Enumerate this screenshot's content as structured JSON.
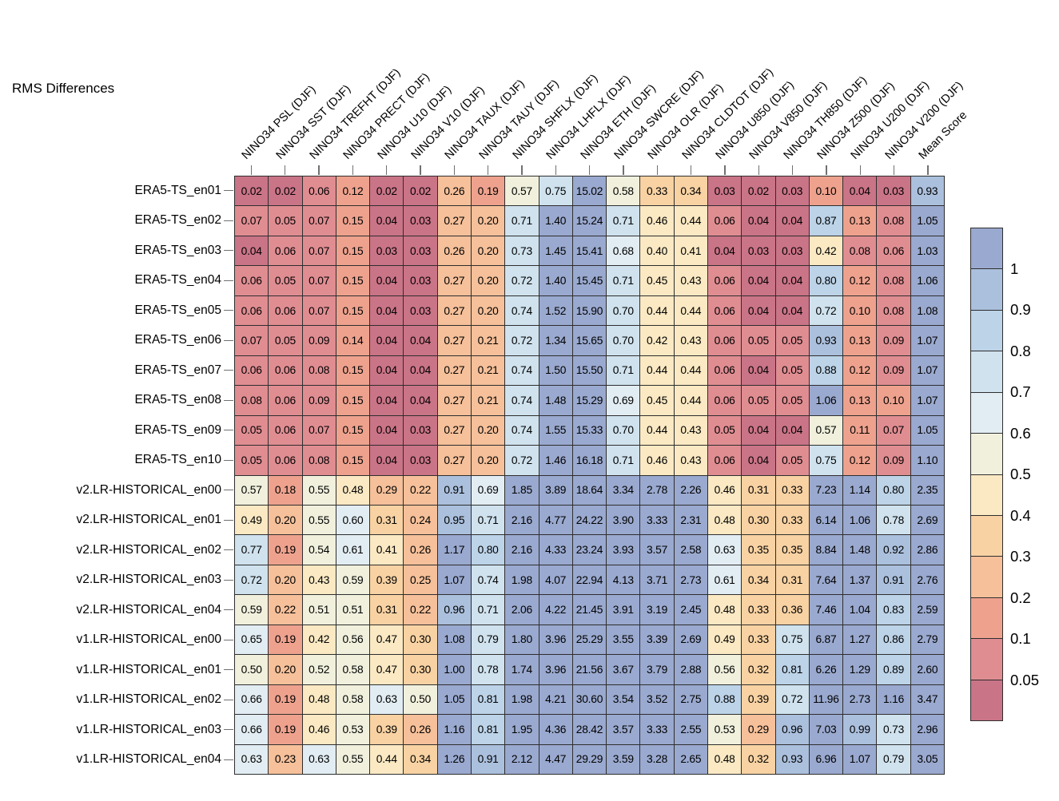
{
  "chart_data": {
    "type": "heatmap",
    "title": "RMS Differences",
    "legend_position": "right",
    "columns": [
      "NINO34 PSL (DJF)",
      "NINO34 SST (DJF)",
      "NINO34 TREFHT (DJF)",
      "NINO34 PRECT (DJF)",
      "NINO34 U10 (DJF)",
      "NINO34 V10 (DJF)",
      "NINO34 TAUX (DJF)",
      "NINO34 TAUY (DJF)",
      "NINO34 SHFLX (DJF)",
      "NINO34 LHFLX (DJF)",
      "NINO34 ETH (DJF)",
      "NINO34 SWCRE (DJF)",
      "NINO34 OLR (DJF)",
      "NINO34 CLDTOT (DJF)",
      "NINO34 U850 (DJF)",
      "NINO34 V850 (DJF)",
      "NINO34 TH850 (DJF)",
      "NINO34 Z500 (DJF)",
      "NINO34 U200 (DJF)",
      "NINO34 V200 (DJF)",
      "Mean Score"
    ],
    "rows": [
      "ERA5-TS_en01",
      "ERA5-TS_en02",
      "ERA5-TS_en03",
      "ERA5-TS_en04",
      "ERA5-TS_en05",
      "ERA5-TS_en06",
      "ERA5-TS_en07",
      "ERA5-TS_en08",
      "ERA5-TS_en09",
      "ERA5-TS_en10",
      "v2.LR-HISTORICAL_en00",
      "v2.LR-HISTORICAL_en01",
      "v2.LR-HISTORICAL_en02",
      "v2.LR-HISTORICAL_en03",
      "v2.LR-HISTORICAL_en04",
      "v1.LR-HISTORICAL_en00",
      "v1.LR-HISTORICAL_en01",
      "v1.LR-HISTORICAL_en02",
      "v1.LR-HISTORICAL_en03",
      "v1.LR-HISTORICAL_en04"
    ],
    "values": [
      [
        "0.02",
        "0.02",
        "0.06",
        "0.12",
        "0.02",
        "0.02",
        "0.26",
        "0.19",
        "0.57",
        "0.75",
        "15.02",
        "0.58",
        "0.33",
        "0.34",
        "0.03",
        "0.02",
        "0.03",
        "0.10",
        "0.04",
        "0.03",
        "0.93"
      ],
      [
        "0.07",
        "0.05",
        "0.07",
        "0.15",
        "0.04",
        "0.03",
        "0.27",
        "0.20",
        "0.71",
        "1.40",
        "15.24",
        "0.71",
        "0.46",
        "0.44",
        "0.06",
        "0.04",
        "0.04",
        "0.87",
        "0.13",
        "0.08",
        "1.05"
      ],
      [
        "0.04",
        "0.06",
        "0.07",
        "0.15",
        "0.03",
        "0.03",
        "0.26",
        "0.20",
        "0.73",
        "1.45",
        "15.41",
        "0.68",
        "0.40",
        "0.41",
        "0.04",
        "0.03",
        "0.03",
        "0.42",
        "0.08",
        "0.06",
        "1.03"
      ],
      [
        "0.06",
        "0.05",
        "0.07",
        "0.15",
        "0.04",
        "0.03",
        "0.27",
        "0.20",
        "0.72",
        "1.40",
        "15.45",
        "0.71",
        "0.45",
        "0.43",
        "0.06",
        "0.04",
        "0.04",
        "0.80",
        "0.12",
        "0.08",
        "1.06"
      ],
      [
        "0.06",
        "0.06",
        "0.07",
        "0.15",
        "0.04",
        "0.03",
        "0.27",
        "0.20",
        "0.74",
        "1.52",
        "15.90",
        "0.70",
        "0.44",
        "0.44",
        "0.06",
        "0.04",
        "0.04",
        "0.72",
        "0.10",
        "0.08",
        "1.08"
      ],
      [
        "0.07",
        "0.05",
        "0.09",
        "0.14",
        "0.04",
        "0.04",
        "0.27",
        "0.21",
        "0.72",
        "1.34",
        "15.65",
        "0.70",
        "0.42",
        "0.43",
        "0.06",
        "0.05",
        "0.05",
        "0.93",
        "0.13",
        "0.09",
        "1.07"
      ],
      [
        "0.06",
        "0.06",
        "0.08",
        "0.15",
        "0.04",
        "0.04",
        "0.27",
        "0.21",
        "0.74",
        "1.50",
        "15.50",
        "0.71",
        "0.44",
        "0.44",
        "0.06",
        "0.04",
        "0.05",
        "0.88",
        "0.12",
        "0.09",
        "1.07"
      ],
      [
        "0.08",
        "0.06",
        "0.09",
        "0.15",
        "0.04",
        "0.04",
        "0.27",
        "0.21",
        "0.74",
        "1.48",
        "15.29",
        "0.69",
        "0.45",
        "0.44",
        "0.06",
        "0.05",
        "0.05",
        "1.06",
        "0.13",
        "0.10",
        "1.07"
      ],
      [
        "0.05",
        "0.06",
        "0.07",
        "0.15",
        "0.04",
        "0.03",
        "0.27",
        "0.20",
        "0.74",
        "1.55",
        "15.33",
        "0.70",
        "0.44",
        "0.43",
        "0.05",
        "0.04",
        "0.04",
        "0.57",
        "0.11",
        "0.07",
        "1.05"
      ],
      [
        "0.05",
        "0.06",
        "0.08",
        "0.15",
        "0.04",
        "0.03",
        "0.27",
        "0.20",
        "0.72",
        "1.46",
        "16.18",
        "0.71",
        "0.46",
        "0.43",
        "0.06",
        "0.04",
        "0.05",
        "0.75",
        "0.12",
        "0.09",
        "1.10"
      ],
      [
        "0.57",
        "0.18",
        "0.55",
        "0.48",
        "0.29",
        "0.22",
        "0.91",
        "0.69",
        "1.85",
        "3.89",
        "18.64",
        "3.34",
        "2.78",
        "2.26",
        "0.46",
        "0.31",
        "0.33",
        "7.23",
        "1.14",
        "0.80",
        "2.35"
      ],
      [
        "0.49",
        "0.20",
        "0.55",
        "0.60",
        "0.31",
        "0.24",
        "0.95",
        "0.71",
        "2.16",
        "4.77",
        "24.22",
        "3.90",
        "3.33",
        "2.31",
        "0.48",
        "0.30",
        "0.33",
        "6.14",
        "1.06",
        "0.78",
        "2.69"
      ],
      [
        "0.77",
        "0.19",
        "0.54",
        "0.61",
        "0.41",
        "0.26",
        "1.17",
        "0.80",
        "2.16",
        "4.33",
        "23.24",
        "3.93",
        "3.57",
        "2.58",
        "0.63",
        "0.35",
        "0.35",
        "8.84",
        "1.48",
        "0.92",
        "2.86"
      ],
      [
        "0.72",
        "0.20",
        "0.43",
        "0.59",
        "0.39",
        "0.25",
        "1.07",
        "0.74",
        "1.98",
        "4.07",
        "22.94",
        "4.13",
        "3.71",
        "2.73",
        "0.61",
        "0.34",
        "0.31",
        "7.64",
        "1.37",
        "0.91",
        "2.76"
      ],
      [
        "0.59",
        "0.22",
        "0.51",
        "0.51",
        "0.31",
        "0.22",
        "0.96",
        "0.71",
        "2.06",
        "4.22",
        "21.45",
        "3.91",
        "3.19",
        "2.45",
        "0.48",
        "0.33",
        "0.36",
        "7.46",
        "1.04",
        "0.83",
        "2.59"
      ],
      [
        "0.65",
        "0.19",
        "0.42",
        "0.56",
        "0.47",
        "0.30",
        "1.08",
        "0.79",
        "1.80",
        "3.96",
        "25.29",
        "3.55",
        "3.39",
        "2.69",
        "0.49",
        "0.33",
        "0.75",
        "6.87",
        "1.27",
        "0.86",
        "2.79"
      ],
      [
        "0.50",
        "0.20",
        "0.52",
        "0.58",
        "0.47",
        "0.30",
        "1.00",
        "0.78",
        "1.74",
        "3.96",
        "21.56",
        "3.67",
        "3.79",
        "2.88",
        "0.56",
        "0.32",
        "0.81",
        "6.26",
        "1.29",
        "0.89",
        "2.60"
      ],
      [
        "0.66",
        "0.19",
        "0.48",
        "0.58",
        "0.63",
        "0.50",
        "1.05",
        "0.81",
        "1.98",
        "4.21",
        "30.60",
        "3.54",
        "3.52",
        "2.75",
        "0.88",
        "0.39",
        "0.72",
        "11.96",
        "2.73",
        "1.16",
        "3.47"
      ],
      [
        "0.66",
        "0.19",
        "0.46",
        "0.53",
        "0.39",
        "0.26",
        "1.16",
        "0.81",
        "1.95",
        "4.36",
        "28.42",
        "3.57",
        "3.33",
        "2.55",
        "0.53",
        "0.29",
        "0.96",
        "7.03",
        "0.99",
        "0.73",
        "2.96"
      ],
      [
        "0.63",
        "0.23",
        "0.63",
        "0.55",
        "0.44",
        "0.34",
        "1.26",
        "0.91",
        "2.12",
        "4.47",
        "29.29",
        "3.59",
        "3.28",
        "2.65",
        "0.48",
        "0.32",
        "0.93",
        "6.96",
        "1.07",
        "0.79",
        "3.05"
      ]
    ],
    "color_scale": {
      "breaks": [
        0.05,
        0.1,
        0.2,
        0.3,
        0.4,
        0.5,
        0.6,
        0.7,
        0.8,
        0.9,
        1.0
      ],
      "colors_low_to_high": [
        "#ca7487",
        "#e08d92",
        "#eea28e",
        "#f5c09a",
        "#f8d2a3",
        "#fae9c3",
        "#f0f0dd",
        "#e2edf3",
        "#cfe2ee",
        "#bcd3e8",
        "#abc0dd",
        "#9aa9cf"
      ],
      "legend_labels_top_to_bottom": [
        "1",
        "0.9",
        "0.8",
        "0.7",
        "0.6",
        "0.5",
        "0.4",
        "0.3",
        "0.2",
        "0.1",
        "0.05"
      ],
      "gridline_color": "#2e2e2e"
    }
  }
}
